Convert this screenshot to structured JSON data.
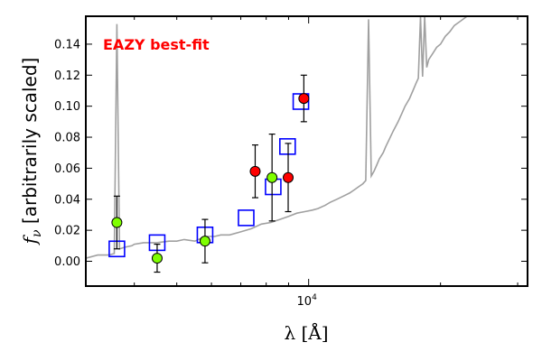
{
  "chart_data": {
    "type": "scatter",
    "title": "",
    "annotation": "EAZY best-fit",
    "annotation_color": "#ff0000",
    "xlabel": "λ [Å]",
    "ylabel_prefix": "f",
    "ylabel_sub": "ν",
    "ylabel_suffix": " [arbitrarily scaled]",
    "xscale": "log",
    "xlim": [
      3100,
      31600
    ],
    "ylim": [
      -0.016,
      0.158
    ],
    "xtick_values": [
      10000
    ],
    "xtick_labels": [
      "10"
    ],
    "xtick_exponent": "4",
    "ytick_values": [
      0.0,
      0.02,
      0.04,
      0.06,
      0.08,
      0.1,
      0.12,
      0.14
    ],
    "ytick_labels": [
      "0.00",
      "0.02",
      "0.04",
      "0.06",
      "0.08",
      "0.10",
      "0.12",
      "0.14"
    ],
    "grid": false,
    "legend": "none",
    "series": [
      {
        "kind": "line",
        "color": "#a0a0a0",
        "x": [
          3100,
          3300,
          3500,
          3600,
          3650,
          3700,
          3800,
          3950,
          4000,
          4200,
          4500,
          4800,
          5000,
          5200,
          5500,
          5800,
          6100,
          6300,
          6600,
          7000,
          7400,
          7800,
          8200,
          8600,
          9000,
          9400,
          9800,
          10200,
          10500,
          10900,
          11200,
          11600,
          12000,
          12400,
          12700,
          13000,
          13300,
          13500,
          13700,
          13900,
          14100,
          14300,
          14500,
          14800,
          15000,
          15300,
          15600,
          16000,
          16300,
          16600,
          17000,
          17300,
          17600,
          17800,
          18000,
          18200,
          18400,
          18600,
          18800,
          19200,
          19600,
          20000,
          20500,
          21000,
          21500,
          22000,
          22500,
          23000
        ],
        "y": [
          0.002,
          0.004,
          0.004,
          0.005,
          0.153,
          0.008,
          0.009,
          0.01,
          0.011,
          0.012,
          0.012,
          0.013,
          0.013,
          0.014,
          0.013,
          0.016,
          0.016,
          0.017,
          0.017,
          0.019,
          0.021,
          0.024,
          0.025,
          0.027,
          0.029,
          0.031,
          0.032,
          0.033,
          0.034,
          0.036,
          0.038,
          0.04,
          0.042,
          0.044,
          0.046,
          0.048,
          0.05,
          0.052,
          0.156,
          0.055,
          0.058,
          0.062,
          0.066,
          0.07,
          0.074,
          0.079,
          0.084,
          0.09,
          0.095,
          0.1,
          0.105,
          0.11,
          0.115,
          0.118,
          0.158,
          0.119,
          0.158,
          0.125,
          0.13,
          0.134,
          0.138,
          0.14,
          0.145,
          0.148,
          0.152,
          0.154,
          0.156,
          0.158
        ]
      },
      {
        "kind": "open-square",
        "color": "#0000ff",
        "x": [
          3650,
          4510,
          5800,
          7200,
          8300,
          8950,
          9600
        ],
        "y": [
          0.008,
          0.012,
          0.017,
          0.028,
          0.048,
          0.074,
          0.103
        ]
      },
      {
        "kind": "point-errorbar",
        "color": "#7fff00",
        "x": [
          3650,
          4510,
          5800,
          8250
        ],
        "y": [
          0.025,
          0.002,
          0.013,
          0.054
        ],
        "yerr": [
          0.017,
          0.009,
          0.014,
          0.028
        ]
      },
      {
        "kind": "point-errorbar",
        "color": "#ff0000",
        "x": [
          7550,
          8980,
          9750
        ],
        "y": [
          0.058,
          0.054,
          0.105
        ],
        "yerr": [
          0.017,
          0.022,
          0.015
        ]
      }
    ]
  }
}
